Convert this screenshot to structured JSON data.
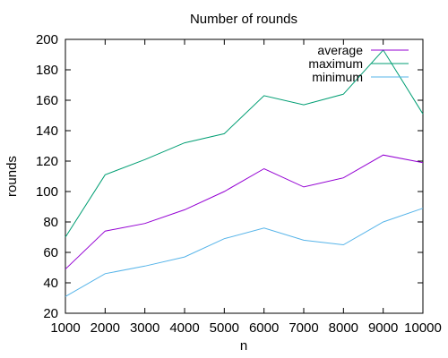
{
  "chart_data": {
    "type": "line",
    "title": "Number of rounds",
    "xlabel": "n",
    "ylabel": "rounds",
    "xlim": [
      1000,
      10000
    ],
    "ylim": [
      20,
      200
    ],
    "x": [
      1000,
      2000,
      3000,
      4000,
      5000,
      6000,
      7000,
      8000,
      9000,
      10000
    ],
    "x_ticks": [
      1000,
      2000,
      3000,
      4000,
      5000,
      6000,
      7000,
      8000,
      9000,
      10000
    ],
    "y_ticks": [
      20,
      40,
      60,
      80,
      100,
      120,
      140,
      160,
      180,
      200
    ],
    "grid": false,
    "legend_position": "top-right",
    "series": [
      {
        "name": "average",
        "color": "#9400d3",
        "values": [
          49,
          74,
          79,
          88,
          100,
          115,
          103,
          109,
          124,
          119
        ]
      },
      {
        "name": "maximum",
        "color": "#009e73",
        "values": [
          70,
          111,
          121,
          132,
          138,
          163,
          157,
          164,
          193,
          151
        ]
      },
      {
        "name": "minimum",
        "color": "#56b4e9",
        "values": [
          31,
          46,
          51,
          57,
          69,
          76,
          68,
          65,
          80,
          89
        ]
      }
    ]
  }
}
